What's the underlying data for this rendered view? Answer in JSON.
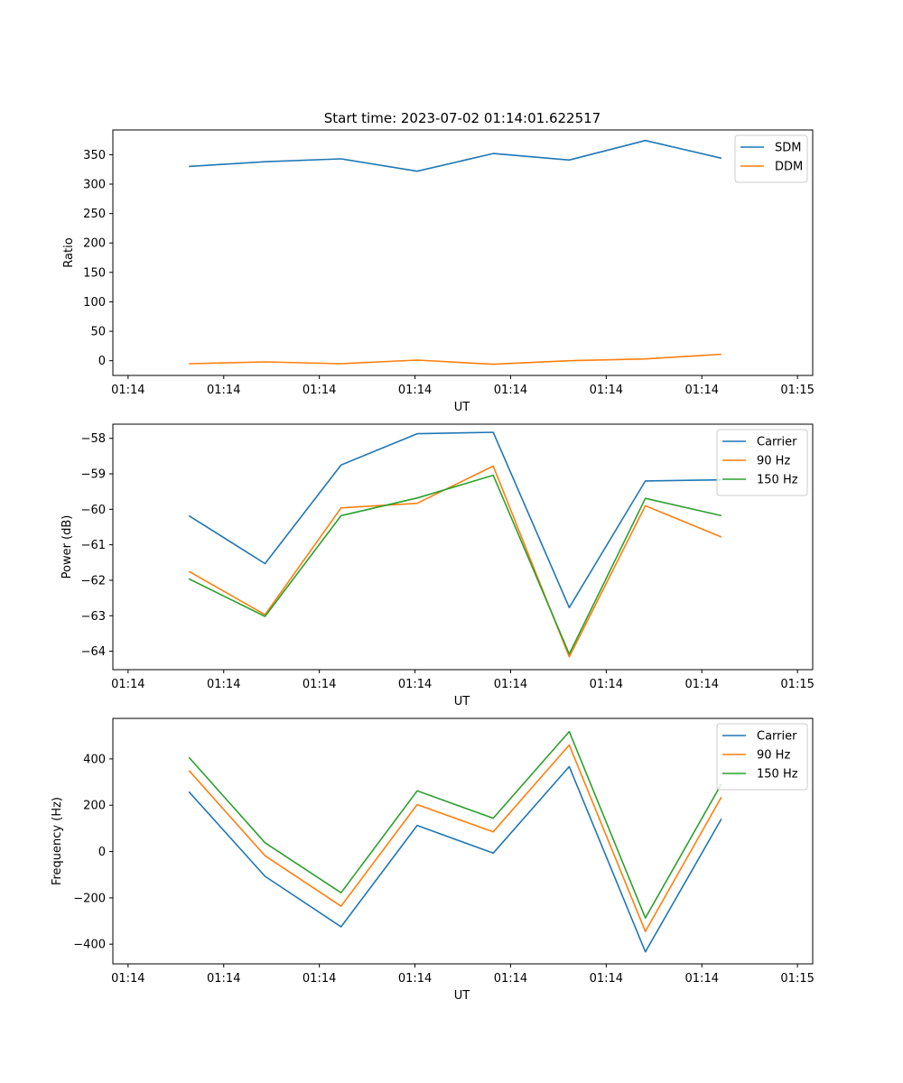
{
  "figure": {
    "title": "Start time: 2023-07-02 01:14:01.622517"
  },
  "chart_data": [
    {
      "type": "line",
      "title": "Start time: 2023-07-02 01:14:01.622517",
      "xlabel": "UT",
      "ylabel": "Ratio",
      "x_tick_labels": [
        "01:14",
        "01:14",
        "01:14",
        "01:14",
        "01:14",
        "01:14",
        "01:14"
      ],
      "x_end_label": "01:15",
      "x": [
        1,
        2,
        3,
        4,
        5,
        6,
        7,
        8
      ],
      "xlim": [
        0,
        9.2
      ],
      "ylim": [
        -25,
        392
      ],
      "y_ticks": [
        0,
        50,
        100,
        150,
        200,
        250,
        300,
        350
      ],
      "legend_position": "top-right",
      "series": [
        {
          "name": "SDM",
          "color": "#1f77b4",
          "values": [
            330,
            338,
            343,
            322,
            352,
            341,
            374,
            344
          ]
        },
        {
          "name": "DDM",
          "color": "#ff7f0e",
          "values": [
            -5,
            -2,
            -5,
            1,
            -6,
            0,
            3,
            11
          ]
        }
      ]
    },
    {
      "type": "line",
      "title": "",
      "xlabel": "UT",
      "ylabel": "Power (dB)",
      "x_tick_labels": [
        "01:14",
        "01:14",
        "01:14",
        "01:14",
        "01:14",
        "01:14",
        "01:14"
      ],
      "x_end_label": "01:15",
      "x": [
        1,
        2,
        3,
        4,
        5,
        6,
        7,
        8
      ],
      "xlim": [
        0,
        9.2
      ],
      "ylim": [
        -64.52,
        -57.6
      ],
      "y_ticks": [
        -64,
        -63,
        -62,
        -61,
        -60,
        -59,
        -58
      ],
      "legend_position": "top-right",
      "series": [
        {
          "name": "Carrier",
          "color": "#1f77b4",
          "values": [
            -60.18,
            -61.53,
            -58.75,
            -57.87,
            -57.83,
            -62.77,
            -59.2,
            -59.17
          ]
        },
        {
          "name": "90 Hz",
          "color": "#ff7f0e",
          "values": [
            -61.75,
            -62.97,
            -59.96,
            -59.83,
            -58.78,
            -64.16,
            -59.9,
            -60.78
          ]
        },
        {
          "name": "150 Hz",
          "color": "#2ca02c",
          "values": [
            -61.96,
            -63.02,
            -60.18,
            -59.68,
            -59.04,
            -64.08,
            -59.69,
            -60.18
          ]
        }
      ]
    },
    {
      "type": "line",
      "title": "",
      "xlabel": "UT",
      "ylabel": "Frequency (Hz)",
      "x_tick_labels": [
        "01:14",
        "01:14",
        "01:14",
        "01:14",
        "01:14",
        "01:14",
        "01:14"
      ],
      "x_end_label": "01:15",
      "x": [
        1,
        2,
        3,
        4,
        5,
        6,
        7,
        8
      ],
      "xlim": [
        0,
        9.2
      ],
      "ylim": [
        -485,
        575
      ],
      "y_ticks": [
        -400,
        -200,
        0,
        200,
        400
      ],
      "legend_position": "top-right",
      "series": [
        {
          "name": "Carrier",
          "color": "#1f77b4",
          "values": [
            258,
            -107,
            -325,
            113,
            -7,
            367,
            -433,
            141
          ]
        },
        {
          "name": "90 Hz",
          "color": "#ff7f0e",
          "values": [
            350,
            -18,
            -236,
            203,
            85,
            460,
            -345,
            235
          ]
        },
        {
          "name": "150 Hz",
          "color": "#2ca02c",
          "values": [
            407,
            38,
            -178,
            262,
            144,
            518,
            -287,
            292
          ]
        }
      ]
    }
  ]
}
